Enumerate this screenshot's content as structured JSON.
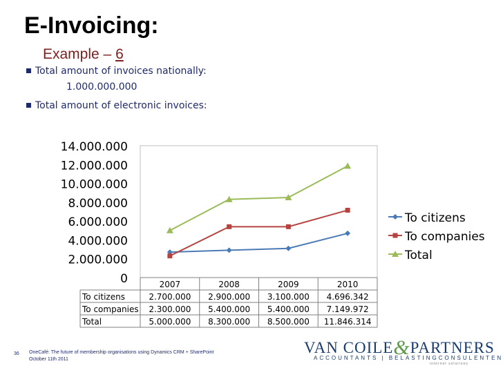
{
  "slide": {
    "title": "E-Invoicing:",
    "subtitle_prefix": "Example – ",
    "subtitle_num": "6",
    "bullets": [
      "Total amount of invoices nationally:",
      "Total amount of electronic invoices:"
    ],
    "national_total": "1.000.000.000",
    "slide_number": "36",
    "footer_line1": "OneCafé: The future of membership organisations using Dynamics CRM + SharePoint",
    "footer_line2": "October 11th 2011"
  },
  "logo": {
    "brand_left": "VAN COILE",
    "brand_amp": "&",
    "brand_right": "PARTNERS",
    "tagline": "ACCOUNTANTS | BELASTINGCONSULENTEN",
    "tagline2": "internet solutions"
  },
  "chart_data": {
    "type": "line",
    "categories": [
      "2007",
      "2008",
      "2009",
      "2010"
    ],
    "ylim": [
      0,
      14000000
    ],
    "ytick_labels": [
      "0",
      "2.000.000",
      "4.000.000",
      "6.000.000",
      "8.000.000",
      "10.000.000",
      "12.000.000",
      "14.000.000"
    ],
    "grid": false,
    "legend_position": "right",
    "series": [
      {
        "name": "To citizens",
        "values": [
          2700000,
          2900000,
          3100000,
          4696342
        ],
        "labels": [
          "2.700.000",
          "2.900.000",
          "3.100.000",
          "4.696.342"
        ],
        "color": "#4a7ab5",
        "marker": "diamond"
      },
      {
        "name": "To companies",
        "values": [
          2300000,
          5400000,
          5400000,
          7149972
        ],
        "labels": [
          "2.300.000",
          "5.400.000",
          "5.400.000",
          "7.149.972"
        ],
        "color": "#b5433f",
        "marker": "square"
      },
      {
        "name": "Total",
        "values": [
          5000000,
          8300000,
          8500000,
          11846314
        ],
        "labels": [
          "5.000.000",
          "8.300.000",
          "8.500.000",
          "11.846.314"
        ],
        "color": "#9bbb59",
        "marker": "triangle"
      }
    ]
  }
}
